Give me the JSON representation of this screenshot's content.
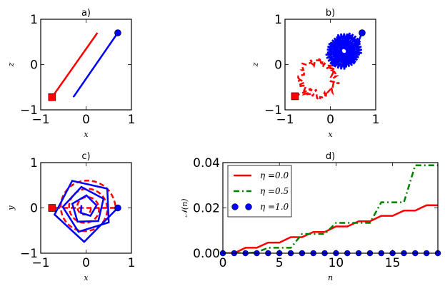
{
  "chart_data": [
    {
      "panel": "a",
      "type": "line",
      "title": "a)",
      "xlabel": "x",
      "ylabel": "z",
      "xlim": [
        -1,
        1
      ],
      "ylim": [
        -1,
        1
      ],
      "xticks": [
        "−1",
        "0",
        "1"
      ],
      "yticks": [
        "−1",
        "0",
        "1"
      ],
      "series": [
        {
          "name": "red",
          "color": "#ff0000",
          "style": "solid",
          "points": [
            [
              -0.75,
              -0.72
            ],
            [
              0.25,
              0.7
            ]
          ],
          "marker": {
            "shape": "square",
            "at": [
              -0.75,
              -0.72
            ]
          }
        },
        {
          "name": "blue",
          "color": "#0000ff",
          "style": "solid",
          "points": [
            [
              -0.28,
              -0.72
            ],
            [
              0.7,
              0.7
            ]
          ],
          "marker": {
            "shape": "circle",
            "at": [
              0.7,
              0.7
            ]
          }
        }
      ]
    },
    {
      "panel": "b",
      "type": "line",
      "title": "b)",
      "xlabel": "x",
      "ylabel": "z",
      "xlim": [
        -1,
        1
      ],
      "ylim": [
        -1,
        1
      ],
      "xticks": [
        "−1",
        "0",
        "1"
      ],
      "yticks": [
        "−1",
        "0",
        "1"
      ],
      "series": [
        {
          "name": "red",
          "color": "#ff0000",
          "style": "dashed",
          "curve": "noisy-loop",
          "center": [
            -0.27,
            -0.3
          ],
          "radius": 0.38,
          "noise": 0.08,
          "marker": {
            "shape": "square",
            "at": [
              -0.78,
              -0.7
            ]
          }
        },
        {
          "name": "blue",
          "color": "#0000ff",
          "style": "solid",
          "curve": "star",
          "center": [
            0.3,
            0.3
          ],
          "radius": 0.42,
          "marker": {
            "shape": "circle",
            "at": [
              0.7,
              0.7
            ]
          }
        }
      ]
    },
    {
      "panel": "c",
      "type": "line",
      "title": "c)",
      "xlabel": "x",
      "ylabel": "y",
      "xlim": [
        -1,
        1
      ],
      "ylim": [
        -1,
        1
      ],
      "xticks": [
        "−1",
        "0",
        "1"
      ],
      "yticks": [
        "−1",
        "0",
        "1"
      ],
      "series": [
        {
          "name": "red",
          "color": "#ff0000",
          "style": "dashed",
          "curve": "spiral",
          "center": [
            0,
            0
          ],
          "radius_range": [
            0.1,
            0.65
          ],
          "marker": {
            "shape": "square",
            "at": [
              -0.75,
              0
            ]
          }
        },
        {
          "name": "blue",
          "color": "#0000ff",
          "style": "solid",
          "curve": "pentagon-spiral",
          "center": [
            0,
            0
          ],
          "radius_range": [
            0.12,
            0.75
          ],
          "marker": {
            "shape": "circle",
            "at": [
              0.7,
              0
            ]
          }
        }
      ]
    },
    {
      "panel": "d",
      "type": "line",
      "title": "d)",
      "xlabel": "n",
      "ylabel": "𝒩(n)",
      "xlim": [
        0,
        19
      ],
      "ylim": [
        0,
        0.04
      ],
      "xticks": [
        "0",
        "5",
        "10",
        "15"
      ],
      "xtick_values": [
        0,
        5,
        10,
        15
      ],
      "yticks": [
        "0.00",
        "0.02",
        "0.04"
      ],
      "ytick_values": [
        0,
        0.02,
        0.04
      ],
      "legend_position": "top-left",
      "x": [
        0,
        1,
        2,
        3,
        4,
        5,
        6,
        7,
        8,
        9,
        10,
        11,
        12,
        13,
        14,
        15,
        16,
        17,
        18,
        19
      ],
      "series": [
        {
          "name": "η =0.0",
          "color": "#ff0000",
          "style": "solid",
          "values": [
            0,
            0,
            0.0024,
            0.0024,
            0.0047,
            0.0047,
            0.0071,
            0.0071,
            0.0094,
            0.0094,
            0.0118,
            0.0118,
            0.0141,
            0.0141,
            0.0165,
            0.0165,
            0.0188,
            0.0188,
            0.0212,
            0.0212
          ]
        },
        {
          "name": "η =0.5",
          "color": "#008000",
          "style": "dashdot",
          "values": [
            0,
            0,
            0,
            0.0004,
            0.0024,
            0.0024,
            0.0024,
            0.0085,
            0.0085,
            0.0085,
            0.0134,
            0.0134,
            0.0134,
            0.0134,
            0.0225,
            0.0225,
            0.0225,
            0.0388,
            0.0388,
            0.0388
          ]
        },
        {
          "name": "η =1.0",
          "color": "#0000ff",
          "style": "markers",
          "values": [
            0,
            0,
            0,
            0,
            0,
            0,
            0,
            0,
            0,
            0,
            0,
            0,
            0,
            0,
            0,
            0,
            0,
            0,
            0,
            0
          ]
        }
      ]
    }
  ]
}
